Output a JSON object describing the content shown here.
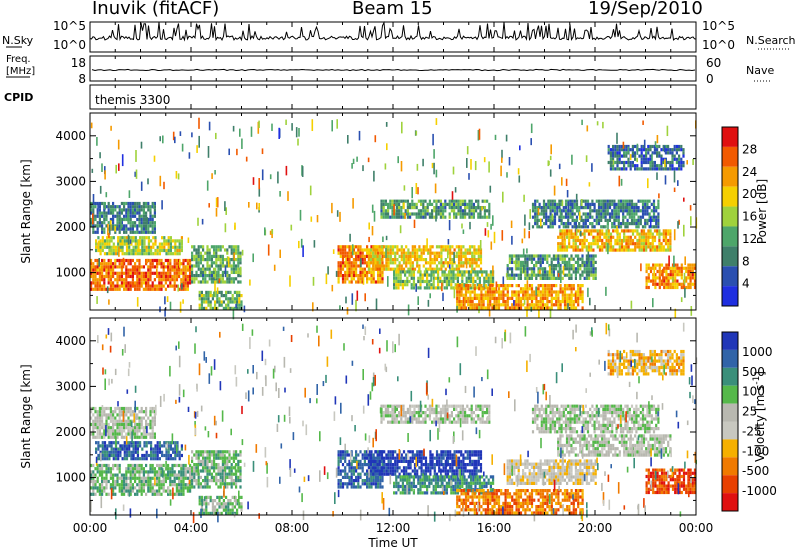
{
  "header": {
    "site": "Inuvik (fitACF)",
    "beam": "Beam 15",
    "date": "19/Sep/2010"
  },
  "colors": {
    "power_scale": [
      "#1f2fe0",
      "#2a4fb0",
      "#3f7f6a",
      "#4ea66a",
      "#9fd23c",
      "#f5d000",
      "#f59a00",
      "#f25a00",
      "#e01010"
    ],
    "velocity_scale": [
      "#2036b8",
      "#3164a8",
      "#3a8f7a",
      "#55b84a",
      "#b8b8b0",
      "#c8c8c0",
      "#f5b000",
      "#f07a00",
      "#e84000",
      "#e01010"
    ]
  },
  "chart_data": [
    {
      "type": "line",
      "panel": "noise",
      "ylabel_left": "N.Sky",
      "ylabel_right": "N.Search",
      "left_ticks": [
        "10^5",
        "10^0"
      ],
      "right_ticks": [
        "10^5",
        "10^0"
      ]
    },
    {
      "type": "line",
      "panel": "frequency",
      "ylabel_left": "Freq.",
      "ylabel_left_unit": "[MHz]",
      "ylabel_right": "Nave",
      "left_ticks": [
        "18",
        "8"
      ],
      "right_ticks": [
        "60",
        "0"
      ],
      "freq_mhz": 10.5,
      "nave": 30
    },
    {
      "type": "table",
      "panel": "cpid",
      "label": "CPID",
      "text": "themis 3300"
    },
    {
      "type": "heatmap",
      "panel": "power",
      "ylabel": "Slant Range [km]",
      "ylim": [
        180,
        4500
      ],
      "yticks": [
        "1000",
        "2000",
        "3000",
        "4000"
      ],
      "colorbar_label": "Power [dB]",
      "colorbar_ticks": [
        "4",
        "8",
        "12",
        "16",
        "20",
        "24",
        "28"
      ],
      "clim": [
        0,
        32
      ],
      "regions": [
        {
          "t": [
            0.0,
            4.0
          ],
          "r": [
            650,
            1300
          ],
          "v": 26
        },
        {
          "t": [
            0.2,
            3.6
          ],
          "r": [
            1400,
            1800
          ],
          "v": 17
        },
        {
          "t": [
            0.0,
            2.6
          ],
          "r": [
            1900,
            2550
          ],
          "v": 9
        },
        {
          "t": [
            4.0,
            6.0
          ],
          "r": [
            800,
            1600
          ],
          "v": 12
        },
        {
          "t": [
            4.3,
            6.0
          ],
          "r": [
            200,
            600
          ],
          "v": 14
        },
        {
          "t": [
            9.8,
            11.6
          ],
          "r": [
            800,
            1600
          ],
          "v": 24
        },
        {
          "t": [
            11.0,
            15.5
          ],
          "r": [
            1100,
            1600
          ],
          "v": 20
        },
        {
          "t": [
            11.5,
            15.8
          ],
          "r": [
            2200,
            2600
          ],
          "v": 11
        },
        {
          "t": [
            12.0,
            16.0
          ],
          "r": [
            650,
            1050
          ],
          "v": 15
        },
        {
          "t": [
            14.5,
            19.5
          ],
          "r": [
            200,
            750
          ],
          "v": 23
        },
        {
          "t": [
            16.5,
            20.0
          ],
          "r": [
            900,
            1400
          ],
          "v": 11
        },
        {
          "t": [
            18.5,
            23.0
          ],
          "r": [
            1500,
            1950
          ],
          "v": 21
        },
        {
          "t": [
            17.5,
            22.5
          ],
          "r": [
            2000,
            2600
          ],
          "v": 9
        },
        {
          "t": [
            22.0,
            24.0
          ],
          "r": [
            650,
            1200
          ],
          "v": 24
        },
        {
          "t": [
            20.5,
            23.5
          ],
          "r": [
            3300,
            3800
          ],
          "v": 7
        }
      ]
    },
    {
      "type": "heatmap",
      "panel": "velocity",
      "xlabel": "Time UT",
      "ylabel": "Slant Range [km]",
      "ylim": [
        180,
        4500
      ],
      "yticks": [
        "1000",
        "2000",
        "3000",
        "4000"
      ],
      "xticks": [
        "00:00",
        "04:00",
        "08:00",
        "12:00",
        "16:00",
        "20:00",
        "00:00"
      ],
      "xlim": [
        0,
        24
      ],
      "colorbar_label": "Velocity [m s",
      "colorbar_label_exp": "-1",
      "colorbar_ticks": [
        "1000",
        "500",
        "100",
        "25",
        "-25",
        "-100",
        "-500",
        "-1000"
      ],
      "regions": [
        {
          "t": [
            0.0,
            4.0
          ],
          "r": [
            650,
            1300
          ],
          "v": 3
        },
        {
          "t": [
            0.2,
            3.6
          ],
          "r": [
            1400,
            1800
          ],
          "v": 1
        },
        {
          "t": [
            0.0,
            2.6
          ],
          "r": [
            1900,
            2550
          ],
          "v": 4
        },
        {
          "t": [
            4.0,
            6.0
          ],
          "r": [
            800,
            1600
          ],
          "v": 3
        },
        {
          "t": [
            4.3,
            6.0
          ],
          "r": [
            200,
            600
          ],
          "v": 3
        },
        {
          "t": [
            9.8,
            11.6
          ],
          "r": [
            800,
            1600
          ],
          "v": 1
        },
        {
          "t": [
            11.0,
            15.5
          ],
          "r": [
            1100,
            1600
          ],
          "v": 0
        },
        {
          "t": [
            11.5,
            15.8
          ],
          "r": [
            2200,
            2600
          ],
          "v": 4
        },
        {
          "t": [
            12.0,
            16.0
          ],
          "r": [
            650,
            1050
          ],
          "v": 2
        },
        {
          "t": [
            14.5,
            19.5
          ],
          "r": [
            200,
            750
          ],
          "v": 7
        },
        {
          "t": [
            16.5,
            20.0
          ],
          "r": [
            900,
            1400
          ],
          "v": 5
        },
        {
          "t": [
            18.5,
            23.0
          ],
          "r": [
            1500,
            1950
          ],
          "v": 4
        },
        {
          "t": [
            17.5,
            22.5
          ],
          "r": [
            2000,
            2600
          ],
          "v": 4
        },
        {
          "t": [
            22.0,
            24.0
          ],
          "r": [
            650,
            1200
          ],
          "v": 8
        },
        {
          "t": [
            20.5,
            23.5
          ],
          "r": [
            3300,
            3800
          ],
          "v": 6
        }
      ]
    }
  ]
}
